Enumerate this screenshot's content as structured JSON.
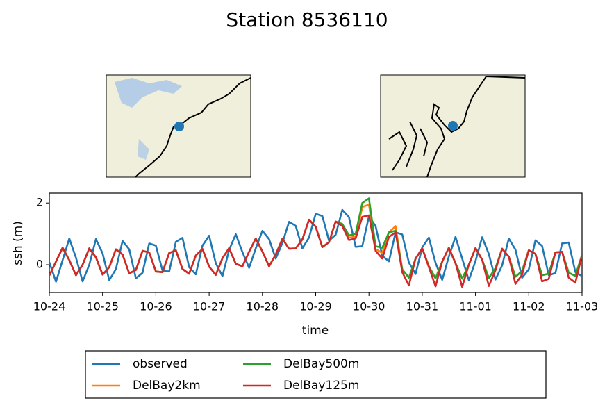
{
  "chart_data": {
    "type": "line",
    "title": "Station 8536110",
    "xlabel": "time",
    "ylabel": "ssh (m)",
    "x": [
      0,
      0.125,
      0.25,
      0.375,
      0.5,
      0.625,
      0.75,
      0.875,
      1,
      1.125,
      1.25,
      1.375,
      1.5,
      1.625,
      1.75,
      1.875,
      2,
      2.125,
      2.25,
      2.375,
      2.5,
      2.625,
      2.75,
      2.875,
      3,
      3.125,
      3.25,
      3.375,
      3.5,
      3.625,
      3.75,
      3.875,
      4,
      4.125,
      4.25,
      4.375,
      4.5,
      4.625,
      4.75,
      4.875,
      5,
      5.125,
      5.25,
      5.375,
      5.5,
      5.625,
      5.75,
      5.875,
      6,
      6.125,
      6.25,
      6.375,
      6.5,
      6.625,
      6.75,
      6.875,
      7,
      7.125,
      7.25,
      7.375,
      7.5,
      7.625,
      7.75,
      7.875,
      8,
      8.125,
      8.25,
      8.375,
      8.5,
      8.625,
      8.75,
      8.875,
      9,
      9.125,
      9.25,
      9.375,
      9.5,
      9.625,
      9.75,
      9.875,
      10
    ],
    "xlim": [
      0,
      10
    ],
    "xticks": [
      {
        "value": 0,
        "label": "10-24"
      },
      {
        "value": 1,
        "label": "10-25"
      },
      {
        "value": 2,
        "label": "10-26"
      },
      {
        "value": 3,
        "label": "10-27"
      },
      {
        "value": 4,
        "label": "10-28"
      },
      {
        "value": 5,
        "label": "10-29"
      },
      {
        "value": 6,
        "label": "10-30"
      },
      {
        "value": 7,
        "label": "10-31"
      },
      {
        "value": 8,
        "label": "11-01"
      },
      {
        "value": 9,
        "label": "11-02"
      },
      {
        "value": 10,
        "label": "11-03"
      }
    ],
    "ylim": [
      -0.9,
      2.32
    ],
    "yticks": [
      0,
      2
    ],
    "legend": "below",
    "series": [
      {
        "name": "observed",
        "color": "#1f77b4",
        "values": [
          0.08,
          -0.55,
          0.15,
          0.85,
          0.23,
          -0.54,
          0.0,
          0.83,
          0.37,
          -0.5,
          -0.14,
          0.77,
          0.5,
          -0.44,
          -0.26,
          0.69,
          0.62,
          -0.19,
          -0.22,
          0.74,
          0.87,
          -0.08,
          -0.31,
          0.62,
          0.94,
          0.05,
          -0.37,
          0.48,
          0.99,
          0.41,
          -0.1,
          0.53,
          1.1,
          0.83,
          0.2,
          0.7,
          1.39,
          1.26,
          0.53,
          0.88,
          1.65,
          1.58,
          0.78,
          0.97,
          1.78,
          1.54,
          0.58,
          0.6,
          1.57,
          1.25,
          0.29,
          0.11,
          1.05,
          0.98,
          0.07,
          -0.3,
          0.56,
          0.88,
          0.06,
          -0.49,
          0.27,
          0.9,
          0.2,
          -0.5,
          0.12,
          0.89,
          0.35,
          -0.48,
          -0.02,
          0.85,
          0.49,
          -0.42,
          -0.15,
          0.79,
          0.61,
          -0.34,
          -0.27,
          0.69,
          0.72,
          -0.24,
          -0.37
        ]
      },
      {
        "name": "DelBay2km",
        "color": "#ff7f0e",
        "values": [
          -0.35,
          0.1,
          0.55,
          0.15,
          -0.34,
          0.0,
          0.53,
          0.24,
          -0.32,
          -0.08,
          0.5,
          0.33,
          -0.28,
          -0.17,
          0.45,
          0.4,
          -0.22,
          -0.24,
          0.38,
          0.47,
          -0.14,
          -0.29,
          0.3,
          0.51,
          -0.06,
          -0.33,
          0.21,
          0.54,
          0.03,
          -0.05,
          0.42,
          0.85,
          0.43,
          -0.05,
          0.33,
          0.84,
          0.52,
          0.53,
          0.82,
          1.46,
          1.23,
          0.57,
          0.73,
          1.4,
          1.32,
          0.88,
          0.9,
          1.87,
          1.95,
          0.51,
          0.38,
          1.05,
          1.25,
          -0.15,
          -0.42,
          0.2,
          0.53,
          -0.05,
          -0.44,
          0.1,
          0.55,
          0.05,
          -0.45,
          0.0,
          0.54,
          0.16,
          -0.43,
          -0.11,
          0.52,
          0.26,
          -0.39,
          -0.2,
          0.47,
          0.35,
          -0.34,
          -0.29,
          0.4,
          0.42,
          -0.26,
          -0.36,
          0.32
        ]
      },
      {
        "name": "DelBay500m",
        "color": "#2ca02c",
        "values": [
          -0.35,
          0.1,
          0.55,
          0.15,
          -0.34,
          0.0,
          0.53,
          0.24,
          -0.32,
          -0.08,
          0.5,
          0.33,
          -0.28,
          -0.17,
          0.45,
          0.4,
          -0.22,
          -0.24,
          0.38,
          0.47,
          -0.14,
          -0.29,
          0.3,
          0.51,
          -0.06,
          -0.33,
          0.21,
          0.54,
          0.03,
          -0.05,
          0.42,
          0.85,
          0.43,
          -0.05,
          0.33,
          0.84,
          0.52,
          0.53,
          0.82,
          1.46,
          1.23,
          0.57,
          0.73,
          1.4,
          1.32,
          0.95,
          1.0,
          2.0,
          2.15,
          0.6,
          0.55,
          1.05,
          1.1,
          -0.15,
          -0.42,
          0.2,
          0.53,
          -0.05,
          -0.44,
          0.1,
          0.55,
          0.05,
          -0.45,
          0.0,
          0.54,
          0.16,
          -0.43,
          -0.11,
          0.52,
          0.26,
          -0.39,
          -0.2,
          0.47,
          0.35,
          -0.34,
          -0.29,
          0.4,
          0.42,
          -0.26,
          -0.36,
          0.32
        ]
      },
      {
        "name": "DelBay125m",
        "color": "#d62728",
        "values": [
          -0.35,
          0.1,
          0.55,
          0.15,
          -0.34,
          0.0,
          0.53,
          0.24,
          -0.32,
          -0.08,
          0.5,
          0.33,
          -0.28,
          -0.17,
          0.45,
          0.4,
          -0.22,
          -0.24,
          0.38,
          0.47,
          -0.14,
          -0.29,
          0.3,
          0.51,
          -0.06,
          -0.33,
          0.21,
          0.54,
          0.03,
          -0.05,
          0.42,
          0.85,
          0.43,
          -0.05,
          0.33,
          0.84,
          0.52,
          0.53,
          0.82,
          1.46,
          1.23,
          0.57,
          0.73,
          1.4,
          1.25,
          0.8,
          0.85,
          1.55,
          1.6,
          0.45,
          0.2,
          0.9,
          1.05,
          -0.24,
          -0.67,
          0.2,
          0.53,
          -0.08,
          -0.7,
          0.1,
          0.55,
          0.05,
          -0.72,
          0.0,
          0.54,
          0.16,
          -0.69,
          -0.18,
          0.52,
          0.26,
          -0.62,
          -0.32,
          0.47,
          0.35,
          -0.54,
          -0.46,
          0.4,
          0.42,
          -0.42,
          -0.58,
          0.32
        ]
      }
    ]
  }
}
